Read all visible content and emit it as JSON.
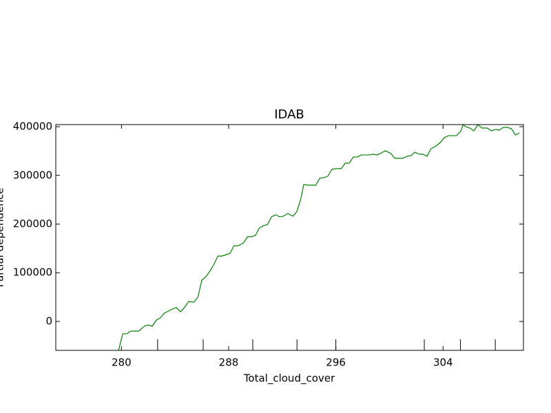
{
  "chart_data": {
    "type": "line",
    "title": "IDAB",
    "xlabel": "Total_cloud_cover",
    "ylabel": "Partial dependence",
    "x": [
      279.7,
      280.1,
      280.4,
      280.7,
      281.0,
      281.3,
      281.7,
      282.0,
      282.3,
      282.6,
      282.9,
      283.2,
      283.5,
      283.8,
      284.1,
      284.4,
      284.7,
      285.0,
      285.4,
      285.7,
      286.0,
      286.3,
      286.6,
      286.9,
      287.2,
      287.5,
      287.8,
      288.1,
      288.4,
      288.7,
      289.1,
      289.4,
      289.7,
      290.0,
      290.3,
      290.6,
      290.9,
      291.2,
      291.5,
      291.8,
      292.1,
      292.4,
      292.8,
      293.1,
      293.4,
      293.6,
      293.9,
      294.2,
      294.5,
      294.8,
      295.1,
      295.4,
      295.7,
      296.0,
      296.4,
      296.7,
      297.0,
      297.3,
      297.6,
      297.9,
      298.2,
      298.5,
      298.8,
      299.1,
      299.4,
      299.7,
      300.1,
      300.4,
      300.7,
      301.0,
      301.3,
      301.6,
      301.9,
      302.2,
      302.5,
      302.8,
      303.1,
      303.4,
      303.8,
      304.1,
      304.4,
      304.7,
      305.0,
      305.3,
      305.5,
      305.7,
      306.0,
      306.3,
      306.6,
      306.9,
      307.3,
      307.6,
      307.9,
      308.2,
      308.5,
      308.8,
      309.1,
      309.4,
      309.7
    ],
    "series": [
      {
        "color": "#008000",
        "values": [
          -67800,
          -25400,
          -25400,
          -19800,
          -19800,
          -19800,
          -9900,
          -7100,
          -9900,
          2800,
          7100,
          17000,
          21200,
          25400,
          28300,
          19800,
          28300,
          41000,
          39600,
          49500,
          84800,
          91900,
          103200,
          117300,
          134300,
          134300,
          137100,
          139900,
          155500,
          155500,
          161100,
          173900,
          173900,
          176700,
          192200,
          196500,
          199300,
          214800,
          219100,
          214800,
          216300,
          221900,
          216300,
          226100,
          253000,
          281300,
          279900,
          279900,
          279900,
          294000,
          295400,
          298200,
          312400,
          313800,
          313800,
          325100,
          325100,
          337800,
          337800,
          342000,
          342000,
          342000,
          343500,
          342000,
          346300,
          350500,
          344900,
          335000,
          335000,
          335000,
          339200,
          340600,
          347700,
          343500,
          343500,
          339200,
          354800,
          359000,
          367500,
          377400,
          381600,
          381600,
          381600,
          390100,
          404200,
          400000,
          397200,
          391500,
          404200,
          397200,
          397200,
          391500,
          394300,
          392900,
          398600,
          398600,
          395800,
          383000,
          387300
        ]
      }
    ],
    "deciles": [
      282.7,
      286.1,
      289.8,
      293.1,
      296.0,
      302.6,
      305.3,
      307.9
    ],
    "xlim": [
      275.1,
      310.0
    ],
    "ylim": [
      -59400,
      404300
    ],
    "xticks": [
      280,
      288,
      296,
      304
    ],
    "yticks": [
      0,
      100000,
      200000,
      300000,
      400000
    ]
  }
}
